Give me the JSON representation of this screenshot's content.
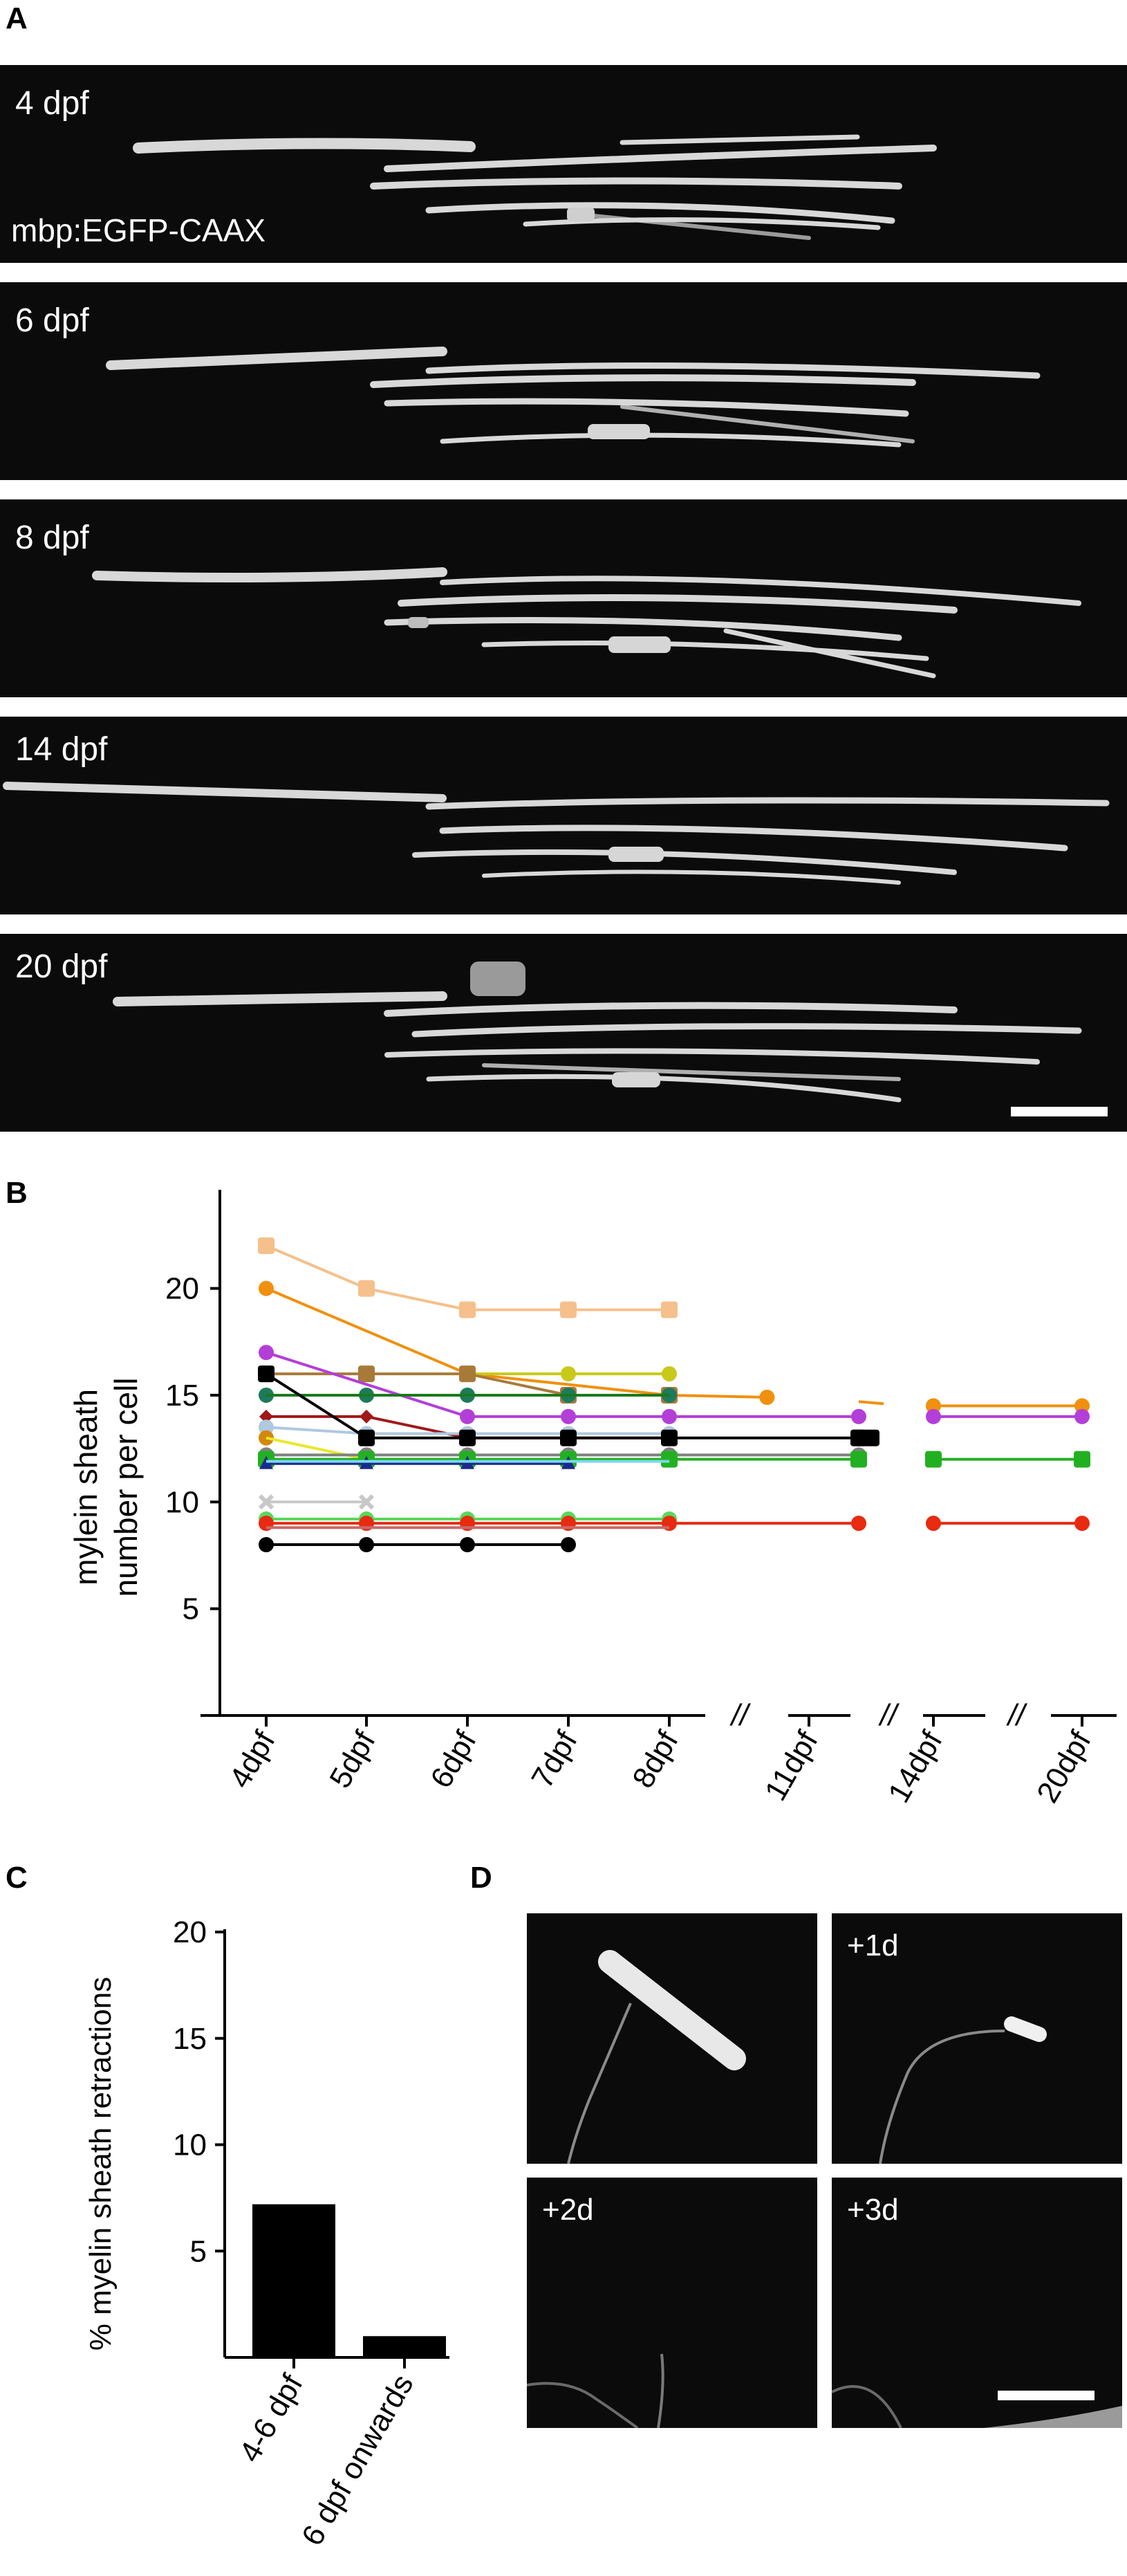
{
  "panels": {
    "a": {
      "letter": "A",
      "stage_labels": [
        "4 dpf",
        "6 dpf",
        "8 dpf",
        "14 dpf",
        "20 dpf"
      ],
      "marker_label": "mbp:EGFP-CAAX"
    },
    "b": {
      "letter": "B"
    },
    "c": {
      "letter": "C"
    },
    "d": {
      "letter": "D",
      "time_labels": [
        "+1d",
        "+2d",
        "+3d"
      ]
    }
  },
  "chart_data": [
    {
      "type": "line",
      "panel": "B",
      "ylabel": [
        "mylein sheath",
        "number per cell"
      ],
      "ylim": [
        0,
        23
      ],
      "yticks": [
        5,
        10,
        15,
        20
      ],
      "categories": [
        "4dpf",
        "5dpf",
        "6dpf",
        "7dpf",
        "8dpf",
        "11dpf",
        "14dpf",
        "20dpf"
      ],
      "axis_break_symbol": "//",
      "series": [
        {
          "color": "#f5c08c",
          "marker": "square",
          "points": [
            [
              0,
              22
            ],
            [
              1,
              20
            ],
            [
              2,
              19
            ],
            [
              3,
              19
            ],
            [
              4,
              19
            ]
          ]
        },
        {
          "color": "#f0900e",
          "marker": "circle",
          "points": [
            [
              0,
              20
            ],
            [
              2,
              16
            ],
            [
              4,
              15
            ],
            [
              4.7,
              14.9
            ]
          ]
        },
        {
          "color": "#f0900e",
          "marker": "none",
          "points": [
            [
              5.4,
              14.7
            ],
            [
              5.6,
              14.6
            ]
          ]
        },
        {
          "color": "#f0900e",
          "marker": "circle",
          "points": [
            [
              6,
              14.5
            ],
            [
              7,
              14.5
            ]
          ]
        },
        {
          "color": "#c9c91a",
          "marker": "circle",
          "points": [
            [
              2,
              16
            ],
            [
              3,
              16
            ],
            [
              4,
              16
            ]
          ]
        },
        {
          "color": "#a87a3a",
          "marker": "square",
          "points": [
            [
              0,
              16
            ],
            [
              1,
              16
            ],
            [
              2,
              16
            ],
            [
              3,
              15
            ],
            [
              4,
              15
            ]
          ]
        },
        {
          "color": "#b43ed8",
          "marker": "circle",
          "points": [
            [
              0,
              17
            ],
            [
              2,
              14
            ],
            [
              3,
              14
            ],
            [
              4,
              14
            ],
            [
              5.4,
              14
            ]
          ]
        },
        {
          "color": "#b43ed8",
          "marker": "circle",
          "points": [
            [
              6,
              14
            ],
            [
              7,
              14
            ]
          ]
        },
        {
          "color": "#1d7a5c",
          "marker": "circle",
          "points": [
            [
              0,
              15
            ],
            [
              1,
              15
            ],
            [
              2,
              15
            ],
            [
              3,
              15
            ],
            [
              4,
              15
            ]
          ]
        },
        {
          "color": "#1a7a1a",
          "marker": "none",
          "points": [
            [
              0,
              15
            ],
            [
              4,
              15
            ]
          ]
        },
        {
          "color": "#a01818",
          "marker": "diamond",
          "points": [
            [
              0,
              14
            ],
            [
              1,
              14
            ],
            [
              2,
              13
            ],
            [
              3,
              13
            ],
            [
              4,
              13
            ]
          ]
        },
        {
          "color": "#b0c8e0",
          "marker": "circle",
          "points": [
            [
              0,
              13.5
            ],
            [
              1,
              13.2
            ],
            [
              2,
              13.2
            ],
            [
              3,
              13.2
            ],
            [
              4,
              13.2
            ]
          ]
        },
        {
          "color": "#000000",
          "marker": "square",
          "points": [
            [
              0,
              16
            ],
            [
              1,
              13
            ],
            [
              2,
              13
            ],
            [
              3,
              13
            ],
            [
              4,
              13
            ],
            [
              5.4,
              13
            ]
          ]
        },
        {
          "color": "#000000",
          "marker": "square",
          "points": [
            [
              5.4,
              13
            ],
            [
              5.5,
              13
            ]
          ]
        },
        {
          "color": "#d4880e",
          "marker": "circle",
          "points": [
            [
              0,
              13
            ]
          ]
        },
        {
          "color": "#e8e82a",
          "marker": "none",
          "points": [
            [
              0,
              13
            ],
            [
              1,
              12
            ],
            [
              2,
              12
            ]
          ]
        },
        {
          "color": "#808080",
          "marker": "circle",
          "points": [
            [
              0,
              12.2
            ],
            [
              1,
              12.2
            ],
            [
              2,
              12.2
            ],
            [
              3,
              12.2
            ],
            [
              4,
              12.2
            ],
            [
              5.4,
              12.2
            ]
          ]
        },
        {
          "color": "#22b022",
          "marker": "square",
          "points": [
            [
              0,
              12
            ],
            [
              1,
              12
            ],
            [
              2,
              12
            ],
            [
              3,
              12
            ],
            [
              4,
              12
            ],
            [
              5.4,
              12
            ]
          ]
        },
        {
          "color": "#22b022",
          "marker": "square",
          "points": [
            [
              6,
              12
            ],
            [
              7,
              12
            ]
          ]
        },
        {
          "color": "#1a2a8a",
          "marker": "triangle",
          "points": [
            [
              0,
              11.8
            ],
            [
              1,
              11.8
            ],
            [
              2,
              11.8
            ],
            [
              3,
              11.8
            ]
          ]
        },
        {
          "color": "#7ad8f0",
          "marker": "none",
          "points": [
            [
              0,
              11.9
            ],
            [
              4,
              11.9
            ]
          ]
        },
        {
          "color": "#c8c8c8",
          "marker": "cross",
          "points": [
            [
              0,
              10
            ],
            [
              1,
              10
            ]
          ]
        },
        {
          "color": "#5ad85a",
          "marker": "circle",
          "points": [
            [
              0,
              9.2
            ],
            [
              1,
              9.2
            ],
            [
              2,
              9.2
            ],
            [
              3,
              9.2
            ],
            [
              4,
              9.2
            ]
          ]
        },
        {
          "color": "#e82a10",
          "marker": "circle",
          "points": [
            [
              0,
              9
            ],
            [
              1,
              9
            ],
            [
              2,
              9
            ],
            [
              3,
              9
            ],
            [
              4,
              9
            ],
            [
              5.4,
              9
            ]
          ]
        },
        {
          "color": "#e82a10",
          "marker": "circle",
          "points": [
            [
              6,
              9
            ],
            [
              7,
              9
            ]
          ]
        },
        {
          "color": "#c86a6a",
          "marker": "none",
          "points": [
            [
              0,
              8.8
            ],
            [
              4,
              8.8
            ]
          ]
        },
        {
          "color": "#000000",
          "marker": "circle",
          "points": [
            [
              0,
              8
            ],
            [
              1,
              8
            ],
            [
              2,
              8
            ],
            [
              3,
              8
            ]
          ]
        }
      ]
    },
    {
      "type": "bar",
      "panel": "C",
      "ylabel": "% myelin sheath retractions",
      "ylim": [
        0,
        20
      ],
      "yticks": [
        5,
        10,
        15,
        20
      ],
      "categories": [
        "4-6 dpf",
        "6 dpf onwards"
      ],
      "values": [
        7.2,
        1.0
      ],
      "bar_color": "#000000"
    }
  ]
}
